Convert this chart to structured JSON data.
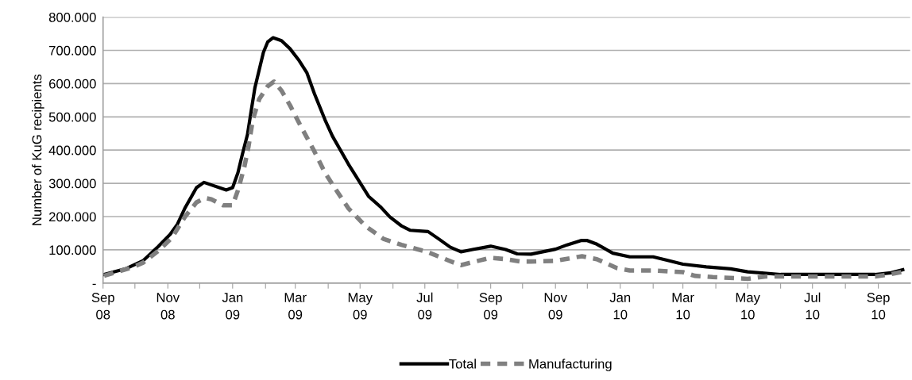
{
  "chart_data": {
    "type": "line",
    "ylabel": "Number of KuG recipients",
    "xlim": [
      "2008-09-01",
      "2010-10-01"
    ],
    "xticks": [
      {
        "value": "2008-09",
        "label": "Sep\n08"
      },
      {
        "value": "2008-10",
        "label": null
      },
      {
        "value": "2008-11",
        "label": "Nov\n08"
      },
      {
        "value": "2008-12",
        "label": null
      },
      {
        "value": "2009-01",
        "label": "Jan\n09"
      },
      {
        "value": "2009-02",
        "label": null
      },
      {
        "value": "2009-03",
        "label": "Mar\n09"
      },
      {
        "value": "2009-04",
        "label": null
      },
      {
        "value": "2009-05",
        "label": "May\n09"
      },
      {
        "value": "2009-06",
        "label": null
      },
      {
        "value": "2009-07",
        "label": "Jul\n09"
      },
      {
        "value": "2009-08",
        "label": null
      },
      {
        "value": "2009-09",
        "label": "Sep\n09"
      },
      {
        "value": "2009-10",
        "label": null
      },
      {
        "value": "2009-11",
        "label": "Nov\n09"
      },
      {
        "value": "2009-12",
        "label": null
      },
      {
        "value": "2010-01",
        "label": "Jan\n10"
      },
      {
        "value": "2010-02",
        "label": null
      },
      {
        "value": "2010-03",
        "label": "Mar\n10"
      },
      {
        "value": "2010-04",
        "label": null
      },
      {
        "value": "2010-05",
        "label": "May\n10"
      },
      {
        "value": "2010-06",
        "label": null
      },
      {
        "value": "2010-07",
        "label": "Jul\n10"
      },
      {
        "value": "2010-08",
        "label": null
      },
      {
        "value": "2010-09",
        "label": "Sep\n10"
      }
    ],
    "ylim": [
      0,
      800000
    ],
    "yticks": [
      {
        "value": 0,
        "label": "-"
      },
      {
        "value": 100000,
        "label": "100.000"
      },
      {
        "value": 200000,
        "label": "200.000"
      },
      {
        "value": 300000,
        "label": "300.000"
      },
      {
        "value": 400000,
        "label": "400.000"
      },
      {
        "value": 500000,
        "label": "500.000"
      },
      {
        "value": 600000,
        "label": "600.000"
      },
      {
        "value": 700000,
        "label": "700.000"
      },
      {
        "value": 800000,
        "label": "800.000"
      }
    ],
    "grid": "y",
    "legend": "bottom",
    "marker": "none",
    "series": [
      {
        "name": "Total",
        "color": "#000000",
        "line_style": "solid",
        "x": [
          "2008-09-02",
          "2008-09-23",
          "2008-10-09",
          "2008-10-23",
          "2008-11-03",
          "2008-11-10",
          "2008-11-17",
          "2008-11-28",
          "2008-12-05",
          "2008-12-26",
          "2009-01-01",
          "2009-01-06",
          "2009-01-10",
          "2009-01-15",
          "2009-01-18",
          "2009-01-22",
          "2009-01-26",
          "2009-01-30",
          "2009-02-03",
          "2009-02-08",
          "2009-02-16",
          "2009-02-24",
          "2009-03-04",
          "2009-03-12",
          "2009-03-19",
          "2009-03-29",
          "2009-04-05",
          "2009-04-20",
          "2009-05-09",
          "2009-05-20",
          "2009-05-29",
          "2009-06-09",
          "2009-06-17",
          "2009-07-04",
          "2009-07-14",
          "2009-07-25",
          "2009-08-04",
          "2009-08-15",
          "2009-09-01",
          "2009-09-15",
          "2009-09-26",
          "2009-10-09",
          "2009-11-01",
          "2009-11-12",
          "2009-11-25",
          "2009-12-01",
          "2009-12-10",
          "2009-12-25",
          "2010-01-10",
          "2010-02-01",
          "2010-02-14",
          "2010-03-01",
          "2010-03-23",
          "2010-04-15",
          "2010-05-01",
          "2010-06-01",
          "2010-06-29",
          "2010-08-29",
          "2010-09-13",
          "2010-09-24"
        ],
        "values": [
          26000,
          44000,
          68000,
          110000,
          146000,
          177000,
          225000,
          287000,
          303000,
          280000,
          287000,
          332000,
          385000,
          447000,
          508000,
          588000,
          641000,
          694000,
          725000,
          738000,
          729000,
          705000,
          672000,
          632000,
          570000,
          491000,
          442000,
          358000,
          261000,
          230000,
          199000,
          172000,
          159000,
          155000,
          133000,
          108000,
          94000,
          101000,
          111000,
          101000,
          88000,
          87000,
          102000,
          115000,
          128000,
          128000,
          117000,
          90000,
          79000,
          79000,
          69000,
          57000,
          49000,
          43000,
          34000,
          26000,
          26000,
          26000,
          31000,
          40000
        ]
      },
      {
        "name": "Manufacturing",
        "color": "#808080",
        "line_style": "dashed",
        "x": [
          "2008-09-02",
          "2008-09-30",
          "2008-10-09",
          "2008-10-23",
          "2008-11-05",
          "2008-11-17",
          "2008-11-28",
          "2008-12-06",
          "2008-12-12",
          "2008-12-23",
          "2009-01-01",
          "2009-01-06",
          "2009-01-12",
          "2009-01-16",
          "2009-01-20",
          "2009-01-26",
          "2009-02-03",
          "2009-02-09",
          "2009-02-16",
          "2009-02-24",
          "2009-03-06",
          "2009-03-18",
          "2009-03-29",
          "2009-04-06",
          "2009-04-20",
          "2009-05-06",
          "2009-05-23",
          "2009-06-09",
          "2009-07-04",
          "2009-07-14",
          "2009-08-01",
          "2009-08-04",
          "2009-08-15",
          "2009-09-01",
          "2009-09-15",
          "2009-09-29",
          "2009-10-09",
          "2009-11-01",
          "2009-11-26",
          "2009-12-10",
          "2009-12-29",
          "2010-01-10",
          "2010-02-01",
          "2010-03-01",
          "2010-03-12",
          "2010-03-29",
          "2010-05-01",
          "2010-05-18",
          "2010-06-29",
          "2010-08-29",
          "2010-09-13",
          "2010-09-24"
        ],
        "values": [
          22000,
          49000,
          62000,
          97000,
          137000,
          199000,
          243000,
          256000,
          252000,
          234000,
          234000,
          279000,
          349000,
          411000,
          491000,
          553000,
          592000,
          606000,
          579000,
          535000,
          473000,
          402000,
          332000,
          292000,
          225000,
          172000,
          133000,
          115000,
          93000,
          80000,
          57000,
          54000,
          63000,
          76000,
          72000,
          65000,
          65000,
          67000,
          81000,
          72000,
          45000,
          38000,
          38000,
          33000,
          22000,
          18000,
          13000,
          20000,
          20000,
          20000,
          27000,
          34000
        ]
      }
    ]
  }
}
